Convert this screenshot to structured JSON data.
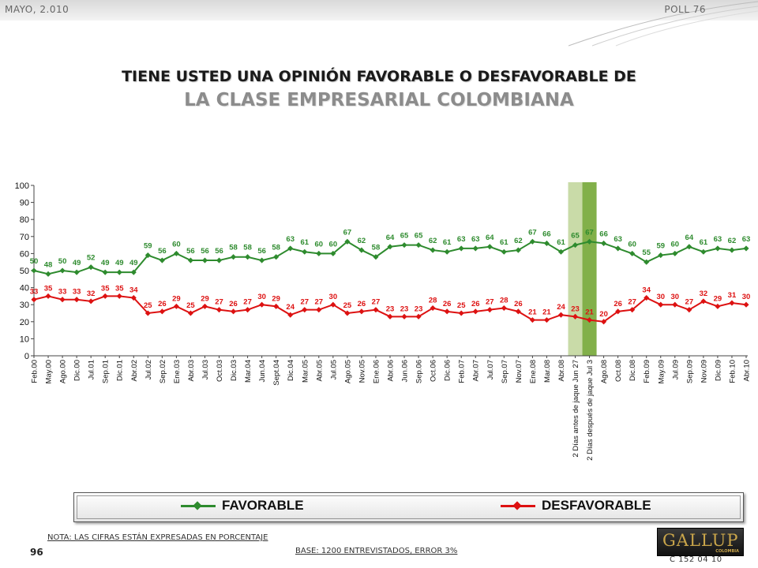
{
  "header": {
    "left_text": "MAYO, 2.010",
    "right_text": "POLL 76"
  },
  "title": {
    "line1": "TIENE USTED UNA OPINIÓN FAVORABLE O DESFAVORABLE DE",
    "line2": "LA CLASE EMPRESARIAL COLOMBIANA"
  },
  "legend": {
    "favorable": "FAVORABLE",
    "desfavorable": "DESFAVORABLE"
  },
  "footer": {
    "note": "NOTA: LAS CIFRAS ESTÁN EXPRESADAS EN PORCENTAJE",
    "page_number": "96",
    "base": "BASE: 1200 ENTREVISTADOS, ERROR 3%",
    "logo_text": "GALLUP",
    "logo_sub": "COLOMBIA",
    "code": "C 152 04 10"
  },
  "colors": {
    "favorable": "#2e8b2e",
    "desfavorable": "#dd1111",
    "highlight_light": "#c9dba8",
    "highlight_dark": "#82b04a"
  },
  "chart_data": {
    "type": "line",
    "ylim": [
      0,
      100
    ],
    "yticks": [
      0,
      10,
      20,
      30,
      40,
      50,
      60,
      70,
      80,
      90,
      100
    ],
    "categories": [
      "Feb.00",
      "May.00",
      "Ago.00",
      "Dic.00",
      "Jul.01",
      "Sep.01",
      "Dic.01",
      "Abr.02",
      "Jul.02",
      "Sep.02",
      "Ene.03",
      "Abr.03",
      "Jul.03",
      "Oct.03",
      "Dic.03",
      "Mar.04",
      "Jun.04",
      "Sept.04",
      "Dic.04",
      "Mar.05",
      "Abr.05",
      "Jul.05",
      "Ago.05",
      "Nov.05",
      "Ene.06",
      "Abr.06",
      "Jun.06",
      "Sep.06",
      "Oct.06",
      "Dic.06",
      "Feb.07",
      "Abr.07",
      "Jul.07",
      "Sep.07",
      "Nov.07",
      "Ene.08",
      "Mar.08",
      "Abr.08",
      "2 Días antes de jaque Jun 27",
      "2 Días después de jaque Jul 3",
      "Ago.08",
      "Oct.08",
      "Dic.08",
      "Feb.09",
      "May.09",
      "Jul.09",
      "Sep.09",
      "Nov.09",
      "Dic.09",
      "Feb.10",
      "Abr.10"
    ],
    "highlighted_categories": [
      "2 Días antes de jaque Jun 27",
      "2 Días después de jaque Jul 3"
    ],
    "series": [
      {
        "name": "FAVORABLE",
        "values": [
          50,
          48,
          50,
          49,
          52,
          49,
          49,
          49,
          59,
          56,
          60,
          56,
          56,
          56,
          58,
          58,
          56,
          58,
          63,
          61,
          60,
          60,
          67,
          62,
          58,
          64,
          65,
          65,
          62,
          61,
          63,
          63,
          64,
          61,
          62,
          67,
          66,
          61,
          65,
          67,
          66,
          63,
          60,
          55,
          59,
          60,
          64,
          61,
          63,
          62,
          63
        ]
      },
      {
        "name": "DESFAVORABLE",
        "values": [
          33,
          35,
          33,
          33,
          32,
          35,
          35,
          34,
          25,
          26,
          29,
          25,
          29,
          27,
          26,
          27,
          30,
          29,
          24,
          27,
          27,
          30,
          25,
          26,
          27,
          23,
          23,
          23,
          28,
          26,
          25,
          26,
          27,
          28,
          26,
          21,
          21,
          24,
          23,
          21,
          20,
          26,
          27,
          34,
          30,
          30,
          27,
          32,
          29,
          31,
          30
        ]
      }
    ],
    "grid": false
  }
}
